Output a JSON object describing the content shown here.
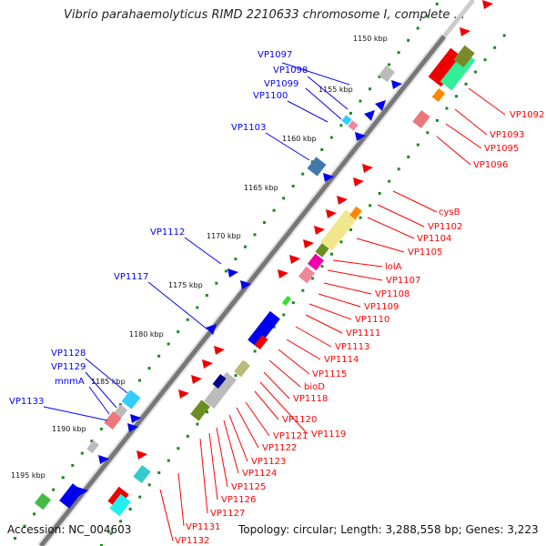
{
  "title": "Vibrio parahaemolyticus RIMD 2210633 chromosome I, complete ...",
  "footer": {
    "accession": "Accession: NC_004603",
    "topology": "Topology: circular; Length: 3,288,558 bp; Genes: 3,223"
  },
  "colors": {
    "forward": "#ff0000",
    "reverse": "#0000ff",
    "backbone": "#777777",
    "tick_dots": "#1a8a1a",
    "background": "#ffffff"
  },
  "scale_labels": [
    "1150 kbp",
    "1155 kbp",
    "1160 kbp",
    "1165 kbp",
    "1170 kbp",
    "1175 kbp",
    "1180 kbp",
    "1185 kbp",
    "1190 kbp",
    "1195 kbp"
  ],
  "blue_labels": [
    "VP1097",
    "VP1098",
    "VP1099",
    "VP1100",
    "VP1103",
    "VP1112",
    "VP1117",
    "VP1128",
    "VP1129",
    "mnmA",
    "VP1133"
  ],
  "red_labels": [
    "VP1092",
    "VP1093",
    "VP1095",
    "VP1096",
    "cysB",
    "VP1102",
    "VP1104",
    "VP1105",
    "lolA",
    "VP1107",
    "VP1108",
    "VP1109",
    "VP1110",
    "VP1111",
    "VP1113",
    "VP1114",
    "VP1115",
    "bioD",
    "VP1118",
    "VP1120",
    "VP1119",
    "VP1121",
    "VP1122",
    "VP1123",
    "VP1124",
    "VP1125",
    "VP1126",
    "VP1127",
    "VP1131",
    "VP1132"
  ]
}
